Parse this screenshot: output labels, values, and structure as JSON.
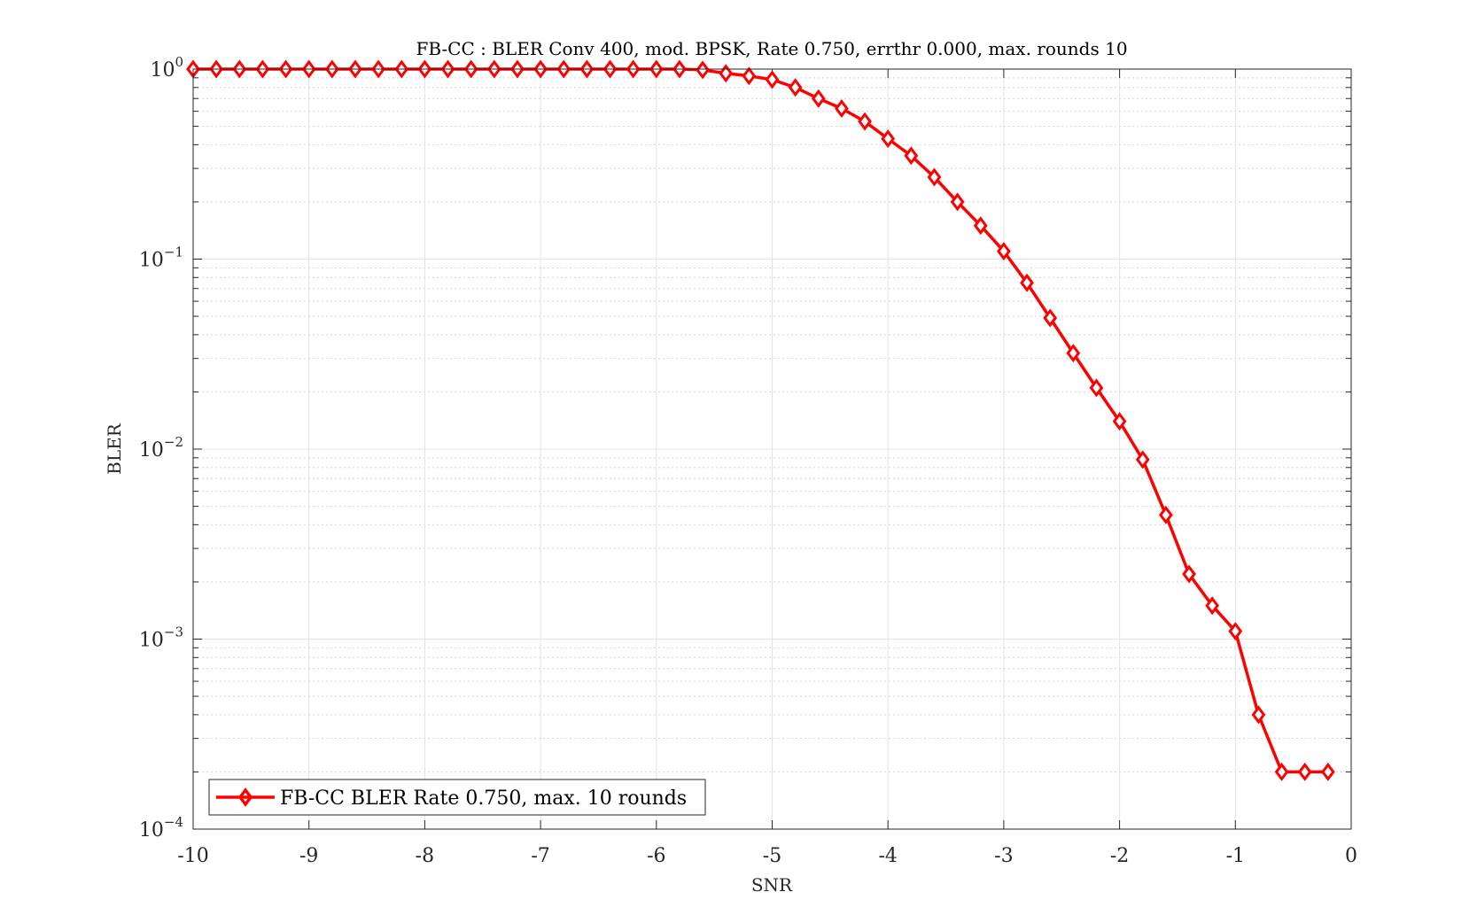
{
  "chart_data": {
    "type": "line",
    "title": "FB-CC : BLER Conv 400, mod. BPSK, Rate 0.750, errthr 0.000, max. rounds 10",
    "xlabel": "SNR",
    "ylabel": "BLER",
    "xlim": [
      -10,
      0
    ],
    "ylim": [
      0.0001,
      1
    ],
    "yscale": "log",
    "grid": true,
    "minor_grid": true,
    "legend_position": "bottom-left",
    "x_ticks": [
      "-10",
      "-9",
      "-8",
      "-7",
      "-6",
      "-5",
      "-4",
      "-3",
      "-2",
      "-1",
      "0"
    ],
    "y_ticks": [
      {
        "base": "10",
        "exp": "0"
      },
      {
        "base": "10",
        "exp": "−1"
      },
      {
        "base": "10",
        "exp": "−2"
      },
      {
        "base": "10",
        "exp": "−3"
      },
      {
        "base": "10",
        "exp": "−4"
      }
    ],
    "series": [
      {
        "name": "FB-CC BLER Rate 0.750, max. 10 rounds",
        "color": "#ff0000",
        "marker": "diamond",
        "x": [
          -10,
          -9.8,
          -9.6,
          -9.4,
          -9.2,
          -9,
          -8.8,
          -8.6,
          -8.4,
          -8.2,
          -8,
          -7.8,
          -7.6,
          -7.4,
          -7.2,
          -7,
          -6.8,
          -6.6,
          -6.4,
          -6.2,
          -6,
          -5.8,
          -5.6,
          -5.4,
          -5.2,
          -5,
          -4.8,
          -4.6,
          -4.4,
          -4.2,
          -4,
          -3.8,
          -3.6,
          -3.4,
          -3.2,
          -3,
          -2.8,
          -2.6,
          -2.4,
          -2.2,
          -2,
          -1.8,
          -1.6,
          -1.4,
          -1.2,
          -1,
          -0.8,
          -0.6,
          -0.4,
          -0.2
        ],
        "y": [
          1,
          1,
          1,
          1,
          1,
          1,
          1,
          1,
          1,
          1,
          1,
          1,
          1,
          1,
          1,
          1,
          1,
          1,
          1,
          1,
          1,
          1,
          0.99,
          0.95,
          0.92,
          0.88,
          0.8,
          0.7,
          0.62,
          0.53,
          0.43,
          0.35,
          0.27,
          0.2,
          0.15,
          0.11,
          0.075,
          0.049,
          0.032,
          0.021,
          0.014,
          0.0088,
          0.0045,
          0.0022,
          0.0015,
          0.0011,
          0.0004,
          0.0002,
          0.0002,
          0.0002
        ]
      }
    ]
  }
}
